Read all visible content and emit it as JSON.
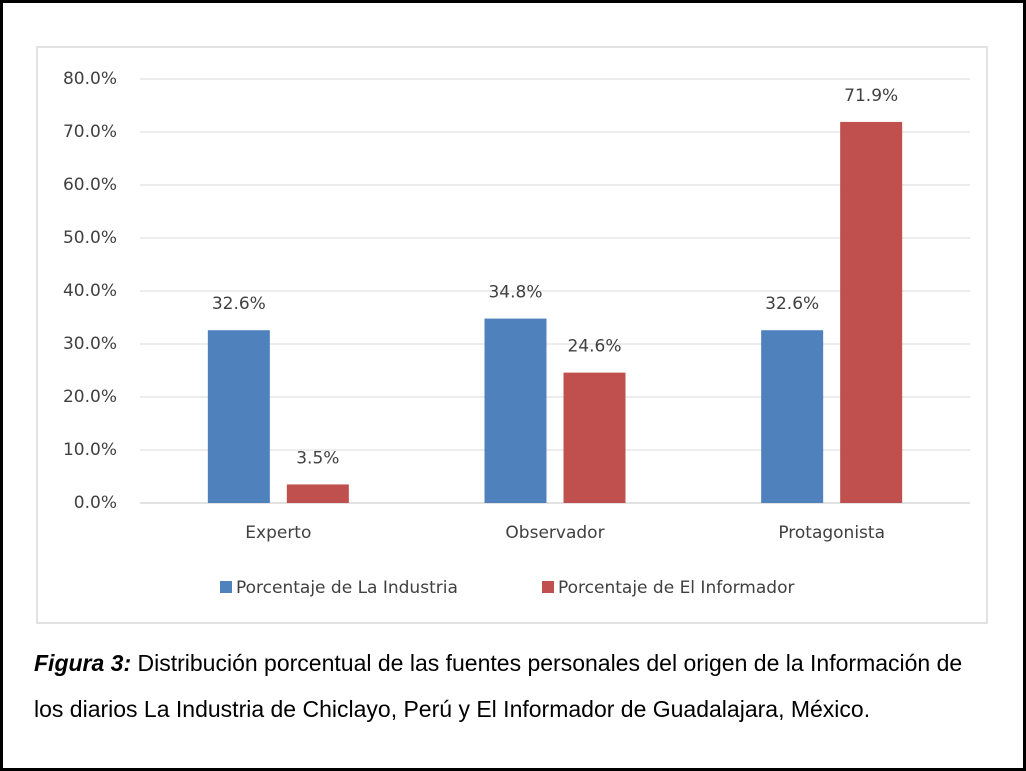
{
  "chart_data": {
    "type": "bar",
    "categories": [
      "Experto",
      "Observador",
      "Protagonista"
    ],
    "series": [
      {
        "name": "Porcentaje de La Industria",
        "color": "#4f81bd",
        "values": [
          32.6,
          34.8,
          32.6
        ],
        "value_labels": [
          "32.6%",
          "34.8%",
          "32.6%"
        ]
      },
      {
        "name": "Porcentaje de El Informador",
        "color": "#c0504d",
        "values": [
          3.5,
          24.6,
          71.9
        ],
        "value_labels": [
          "3.5%",
          "24.6%",
          "71.9%"
        ]
      }
    ],
    "ylim": [
      0,
      80
    ],
    "yticks": [
      {
        "value": 0,
        "label": "0.0%"
      },
      {
        "value": 10,
        "label": "10.0%"
      },
      {
        "value": 20,
        "label": "20.0%"
      },
      {
        "value": 30,
        "label": "30.0%"
      },
      {
        "value": 40,
        "label": "40.0%"
      },
      {
        "value": 50,
        "label": "50.0%"
      },
      {
        "value": 60,
        "label": "60.0%"
      },
      {
        "value": 70,
        "label": "70.0%"
      },
      {
        "value": 80,
        "label": "80.0%"
      }
    ],
    "grid": true,
    "legend": "bottom"
  },
  "caption": {
    "label": "Figura 3:",
    "text": " Distribución porcentual de las fuentes personales del origen de la Información de los diarios La Industria de Chiclayo, Perú y El Informador de Guadalajara, México."
  }
}
